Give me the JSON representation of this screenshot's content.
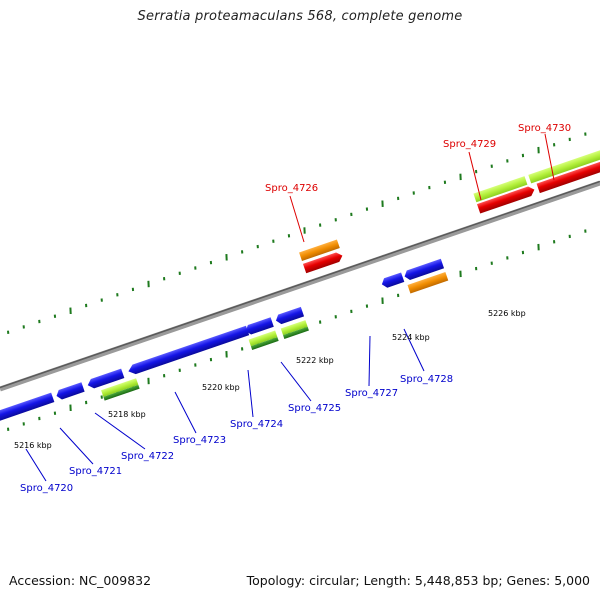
{
  "title": "Serratia proteamaculans 568, complete genome",
  "footer": {
    "accession": "Accession: NC_009832",
    "summary": "Topology: circular; Length: 5,448,853 bp; Genes: 5,000"
  },
  "colors": {
    "plus_strand_label": "#dd0000",
    "minus_strand_label": "#0000cc",
    "gene_blue": "#1414e6",
    "gene_red": "#e60000",
    "gene_orange": "#f08c00",
    "gene_green_light": "#b4f03c",
    "gene_green_dark": "#2a8a1e",
    "tick_green": "#1e7a1e"
  },
  "scale_labels": [
    "5216 kbp",
    "5218 kbp",
    "5220 kbp",
    "5222 kbp",
    "5224 kbp",
    "5226 kbp"
  ],
  "genes": [
    {
      "name": "Spro_4720",
      "strand": "minus"
    },
    {
      "name": "Spro_4721",
      "strand": "minus"
    },
    {
      "name": "Spro_4722",
      "strand": "minus"
    },
    {
      "name": "Spro_4723",
      "strand": "minus"
    },
    {
      "name": "Spro_4724",
      "strand": "minus"
    },
    {
      "name": "Spro_4725",
      "strand": "minus"
    },
    {
      "name": "Spro_4726",
      "strand": "plus"
    },
    {
      "name": "Spro_4727",
      "strand": "minus"
    },
    {
      "name": "Spro_4728",
      "strand": "minus"
    },
    {
      "name": "Spro_4729",
      "strand": "plus"
    },
    {
      "name": "Spro_4730",
      "strand": "plus"
    }
  ]
}
